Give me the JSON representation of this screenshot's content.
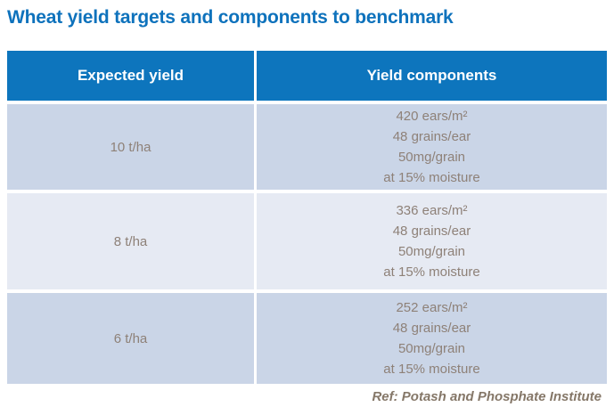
{
  "page": {
    "title": "Wheat yield targets and components to benchmark",
    "footer": "Ref: Potash and Phosphate Institute"
  },
  "colors": {
    "title_blue": "#0E72BC",
    "header_bg": "#0D75BD",
    "row_odd_bg": "#CAD5E7",
    "row_even_bg": "#E6EAF3",
    "cell_text": "#8E8178",
    "footer_text": "#857768"
  },
  "table": {
    "headers": [
      "Expected yield",
      "Yield components"
    ],
    "rows": [
      {
        "yield": "10 t/ha",
        "components": [
          "420 ears/m²",
          "48 grains/ear",
          "50mg/grain",
          "at 15% moisture"
        ]
      },
      {
        "yield": "8 t/ha",
        "components": [
          "336 ears/m²",
          "48 grains/ear",
          "50mg/grain",
          "at 15% moisture"
        ]
      },
      {
        "yield": "6 t/ha",
        "components": [
          "252 ears/m²",
          "48 grains/ear",
          "50mg/grain",
          "at 15% moisture"
        ]
      }
    ]
  }
}
